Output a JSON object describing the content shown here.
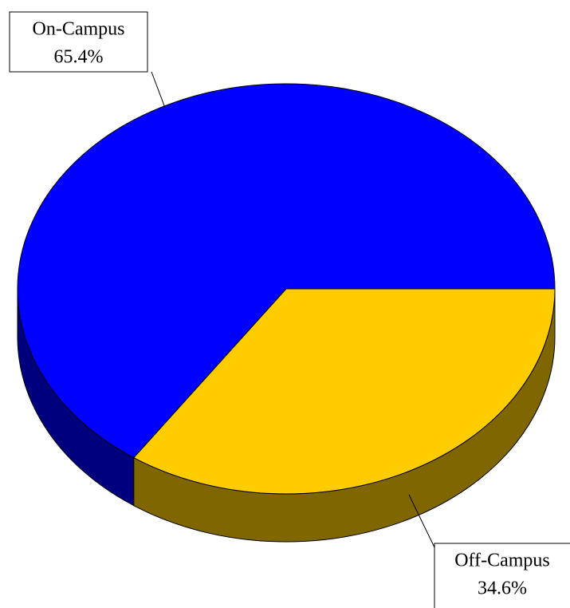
{
  "chart_data": {
    "type": "pie",
    "categories": [
      "On-Campus",
      "Off-Campus"
    ],
    "values": [
      65.4,
      34.6
    ],
    "value_labels": [
      "65.4%",
      "34.6%"
    ],
    "colors": [
      "#0000ff",
      "#ffcc00"
    ],
    "three_d": true
  }
}
